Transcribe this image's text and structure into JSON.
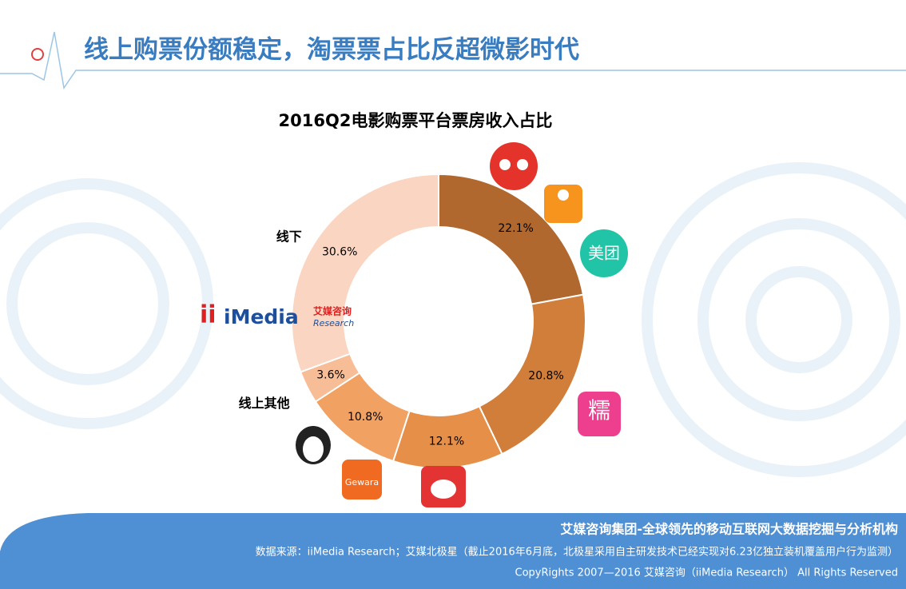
{
  "header": {
    "title": "线上购票份额稳定，淘票票占比反超微影时代"
  },
  "chart_data": {
    "type": "donut",
    "title": "2016Q2电影购票平台票房收入占比",
    "categories": [
      null,
      null,
      null,
      null,
      "线上其他",
      "线下"
    ],
    "values": [
      22.1,
      20.8,
      12.1,
      10.8,
      3.6,
      30.6
    ],
    "value_labels": [
      "22.1%",
      "20.8%",
      "12.1%",
      "10.8%",
      "3.6%",
      "30.6%"
    ],
    "colors": [
      "#b0682f",
      "#d07e3a",
      "#e68f48",
      "#f1a263",
      "#f6bd96",
      "#fad6c2"
    ]
  },
  "logos": {
    "meituan": "美团",
    "nuomi": "糯",
    "gewara": "Gewara"
  },
  "watermark": {
    "brand": "iMedia",
    "cn": "艾媒咨询",
    "en": "Research"
  },
  "footer": {
    "company": "艾媒咨询集团-全球领先的移动互联网大数据挖掘与分析机构",
    "source": "数据来源：iiMedia Research；艾媒北极星（截止2016年6月底，北极星采用自主研发技术已经实现对6.23亿独立装机覆盖用户行为监测）",
    "copyright": "CopyRights 2007—2016 艾媒咨询（iiMedia Research） All Rights Reserved"
  }
}
